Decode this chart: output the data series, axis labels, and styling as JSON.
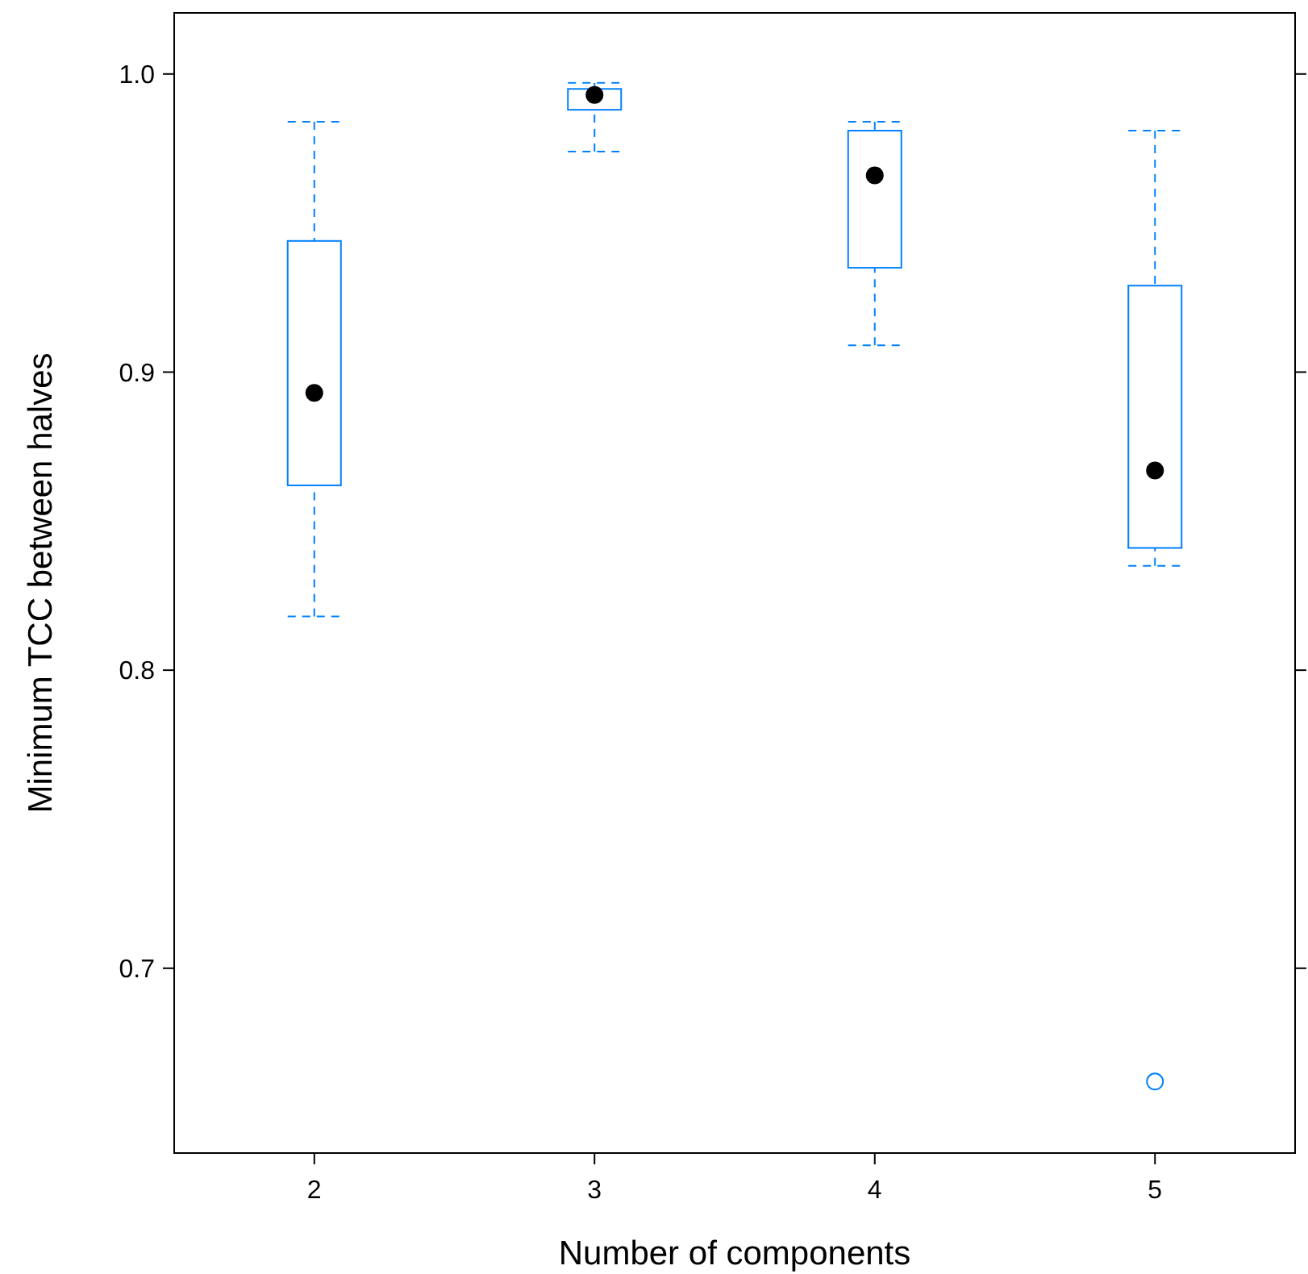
{
  "chart_data": {
    "type": "box",
    "xlabel": "Number of components",
    "ylabel": "Minimum TCC between halves",
    "categories": [
      "2",
      "3",
      "4",
      "5"
    ],
    "color": "#0080ff",
    "boxes": [
      {
        "low": 0.818,
        "q1": 0.862,
        "median": 0.893,
        "q3": 0.944,
        "high": 0.984
      },
      {
        "low": 0.974,
        "q1": 0.988,
        "median": 0.993,
        "q3": 0.995,
        "high": 0.997
      },
      {
        "low": 0.909,
        "q1": 0.935,
        "median": 0.966,
        "q3": 0.981,
        "high": 0.984
      },
      {
        "low": 0.835,
        "q1": 0.841,
        "median": 0.867,
        "q3": 0.929,
        "high": 0.981,
        "outliers": [
          0.662
        ]
      }
    ],
    "ylim": [
      0.638,
      1.0205
    ],
    "yticks": [
      {
        "value": 0.7,
        "label": "0.7"
      },
      {
        "value": 0.8,
        "label": "0.8"
      },
      {
        "value": 0.9,
        "label": "0.9"
      },
      {
        "value": 1.0,
        "label": "1.0"
      }
    ],
    "grid": false
  }
}
